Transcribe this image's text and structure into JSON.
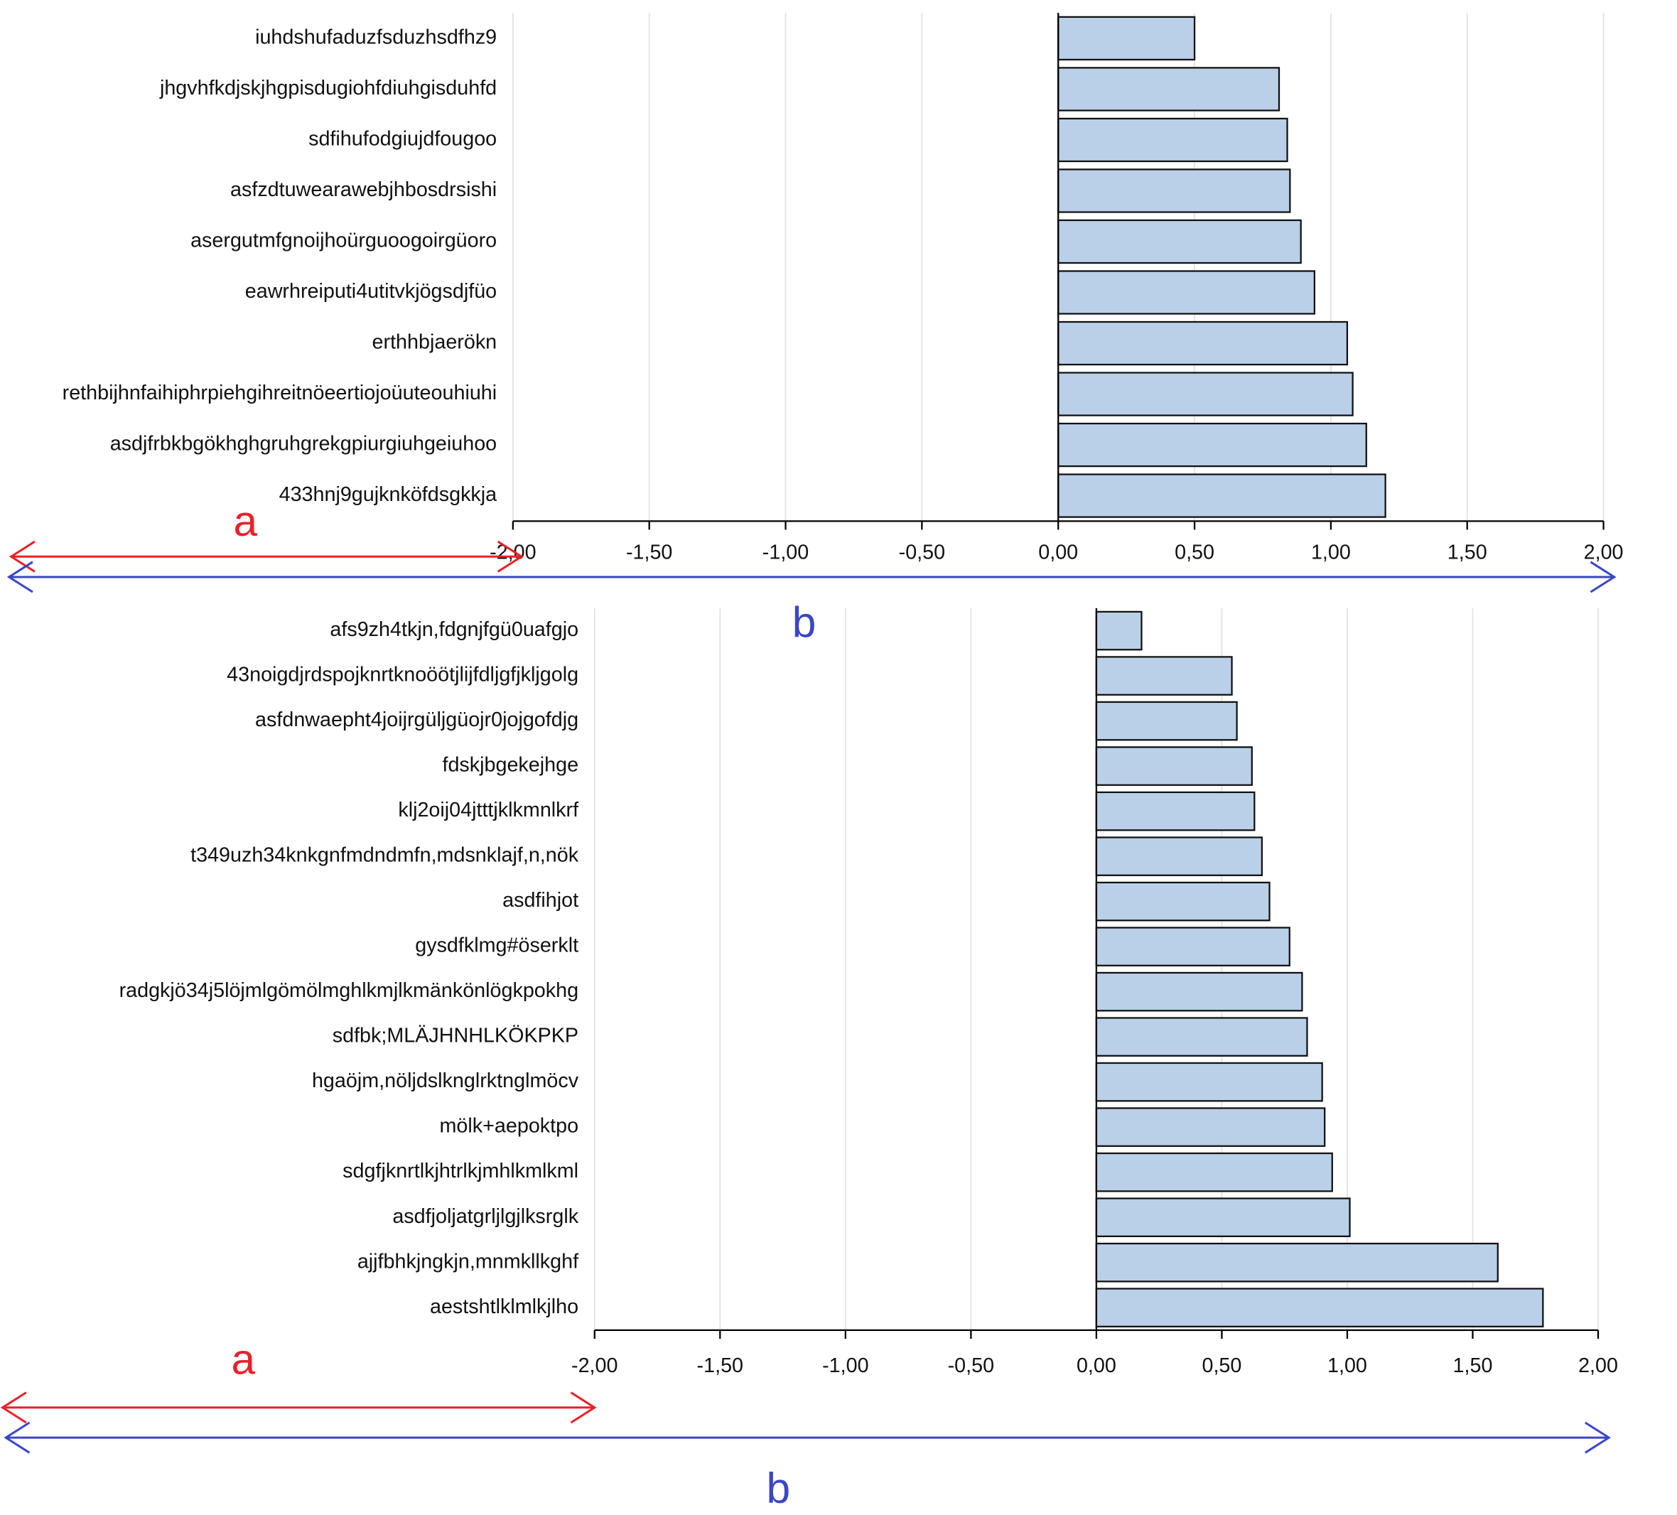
{
  "chart_data": [
    {
      "type": "barh",
      "categories": [
        "iuhdshufaduzfsduzhsdfhz9",
        "jhgvhfkdjskjhgpisdugiohfdiuhgisduhfd",
        "sdfihufodgiujdfougoo",
        "asfzdtuwearawebjhbosdrsishi",
        "asergutmfgnoijhoürguoogoirgüoro",
        "eawrhreiputi4utitvkjögsdjfüo",
        "erthhbjaerökn",
        "rethbijhnfaihiphrpiehgihreitnöeertiojoüuteouhiuhi",
        "asdjfrbkbgökhghgruhgrekgpiurgiuhgeiuhoo",
        "433hnj9gujknköfdsgkkja"
      ],
      "values": [
        0.5,
        0.81,
        0.84,
        0.85,
        0.89,
        0.94,
        1.06,
        1.08,
        1.13,
        1.2
      ],
      "color": "#bad0e9",
      "xlim": [
        -2,
        2
      ],
      "xticks": [
        {
          "value": -2,
          "label": "-2,00"
        },
        {
          "value": -1.5,
          "label": "-1,50"
        },
        {
          "value": -1,
          "label": "-1,00"
        },
        {
          "value": -0.5,
          "label": "-0,50"
        },
        {
          "value": 0,
          "label": "0,00"
        },
        {
          "value": 0.5,
          "label": "0,50"
        },
        {
          "value": 1,
          "label": "1,00"
        },
        {
          "value": 1.5,
          "label": "1,50"
        },
        {
          "value": 2,
          "label": "2,00"
        }
      ],
      "grid": true,
      "annotations": [
        {
          "text": "a",
          "color": "#e8212a"
        },
        {
          "text": "b",
          "color": "#3a46c8"
        }
      ]
    },
    {
      "type": "barh",
      "categories": [
        "afs9zh4tkjn,fdgnjfgü0uafgjo",
        "43noigdjrdspojknrtknoöötjlijfdljgfjkljgolg",
        "asfdnwaepht4joijrgüljgüojr0jojgofdjg",
        "fdskjbgekejhge",
        "klj2oij04jtttjklkmnlkrf",
        "t349uzh34knkgnfmdndmfn,mdsnklajf,n,nök",
        "asdfihjot",
        "gysdfklmg#öserklt",
        "radgkjö34j5löjmlgömölmghlkmjlkmänkönlögkpokhg",
        "sdfbk;MLÄJHNHLKÖKPKP",
        "hgaöjm,nöljdslknglrktnglmöcv",
        "mölk+aepoktpo",
        "sdgfjknrtlkjhtrlkjmhlkmlkml",
        "asdfjoljatgrljlgjlksrglk",
        "ajjfbhkjngkjn,mnmkllkghf",
        "aestshtlklmlkjlho"
      ],
      "values": [
        0.18,
        0.54,
        0.56,
        0.62,
        0.63,
        0.66,
        0.69,
        0.77,
        0.82,
        0.84,
        0.9,
        0.91,
        0.94,
        1.01,
        1.6,
        1.78
      ],
      "color": "#bad0e9",
      "xlim": [
        -2,
        2
      ],
      "xticks": [
        {
          "value": -2,
          "label": "-2,00"
        },
        {
          "value": -1.5,
          "label": "-1,50"
        },
        {
          "value": -1,
          "label": "-1,00"
        },
        {
          "value": -0.5,
          "label": "-0,50"
        },
        {
          "value": 0,
          "label": "0,00"
        },
        {
          "value": 0.5,
          "label": "0,50"
        },
        {
          "value": 1,
          "label": "1,00"
        },
        {
          "value": 1.5,
          "label": "1,50"
        },
        {
          "value": 2,
          "label": "2,00"
        }
      ],
      "grid": true,
      "annotations": [
        {
          "text": "a",
          "color": "#e8212a"
        },
        {
          "text": "b",
          "color": "#3a46c8"
        }
      ]
    }
  ]
}
